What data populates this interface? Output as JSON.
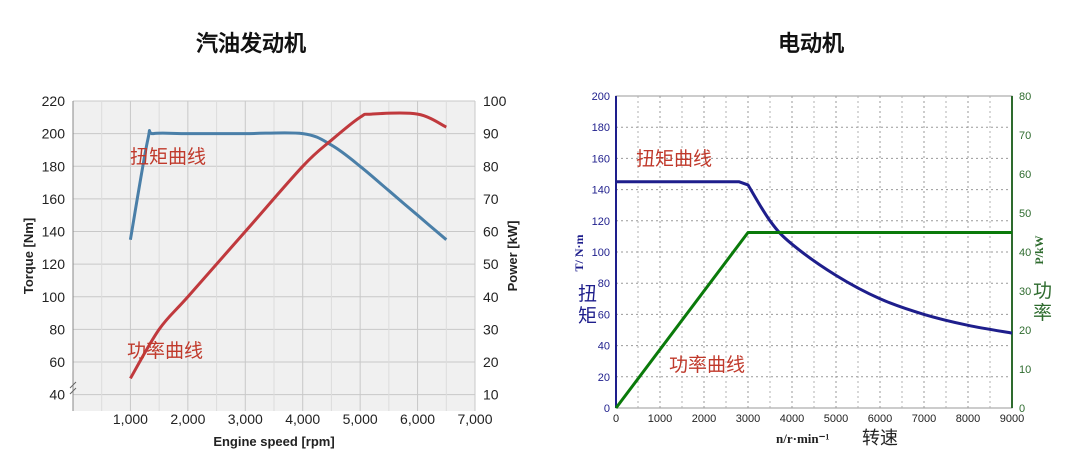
{
  "titles": {
    "left": "汽油发动机",
    "right": "电动机"
  },
  "colors": {
    "torque_engine": "#4a7fa8",
    "power_engine": "#c0393d",
    "torque_motor": "#1e1e8c",
    "power_motor": "#0a7a0a",
    "annotation_red": "#c0392b",
    "motor_right_axis": "#2e6b2e"
  },
  "chart_data": [
    {
      "type": "line",
      "title": "汽油发动机",
      "xlabel": "Engine speed [rpm]",
      "ylabel_left": "Torque [Nm]",
      "ylabel_right": "Power [kW]",
      "xlim": [
        0,
        7000
      ],
      "ylim_left": [
        30,
        220
      ],
      "ylim_right": [
        5,
        100
      ],
      "x_ticks": [
        "1,000",
        "2,000",
        "3,000",
        "4,000",
        "5,000",
        "6,000",
        "7,000"
      ],
      "y_ticks_left": [
        "40",
        "60",
        "80",
        "100",
        "120",
        "140",
        "160",
        "180",
        "200",
        "220"
      ],
      "y_ticks_right": [
        "10",
        "20",
        "30",
        "40",
        "50",
        "60",
        "70",
        "80",
        "90",
        "100"
      ],
      "grid": true,
      "series": [
        {
          "name": "扭矩曲线",
          "axis": "left",
          "x": [
            1000,
            1300,
            1400,
            2000,
            3000,
            4000,
            4500,
            5000,
            5500,
            6000,
            6500
          ],
          "y": [
            135,
            196,
            200,
            200,
            200,
            200,
            193,
            180,
            165,
            150,
            135
          ]
        },
        {
          "name": "功率曲线",
          "axis": "right",
          "x": [
            1000,
            1500,
            2000,
            3000,
            4000,
            4500,
            5000,
            5200,
            6000,
            6500
          ],
          "y": [
            15,
            30,
            40,
            60,
            80,
            88,
            95,
            96,
            96,
            92
          ]
        }
      ]
    },
    {
      "type": "line",
      "title": "电动机",
      "xlabel": "n/r·min⁻¹",
      "xlabel_cn": "转速",
      "ylabel_left": "T/ N·m",
      "ylabel_left_cn": "扭矩",
      "ylabel_right": "P/kW",
      "ylabel_right_cn": "功率",
      "xlim": [
        0,
        9000
      ],
      "ylim_left": [
        0,
        200
      ],
      "ylim_right": [
        0,
        80
      ],
      "x_ticks": [
        "0",
        "1000",
        "2000",
        "3000",
        "4000",
        "5000",
        "6000",
        "7000",
        "8000",
        "9000"
      ],
      "y_ticks_left": [
        "0",
        "20",
        "40",
        "60",
        "80",
        "100",
        "120",
        "140",
        "160",
        "180",
        "200"
      ],
      "y_ticks_right": [
        "0",
        "10",
        "20",
        "30",
        "40",
        "50",
        "60",
        "70",
        "80"
      ],
      "grid": true,
      "series": [
        {
          "name": "扭矩曲线",
          "axis": "left",
          "x": [
            0,
            2800,
            3000,
            3500,
            4000,
            5000,
            6000,
            7000,
            8000,
            9000
          ],
          "y": [
            145,
            145,
            143,
            120,
            105,
            85,
            70,
            60,
            53,
            48
          ]
        },
        {
          "name": "功率曲线",
          "axis": "right",
          "x": [
            0,
            3000,
            9000
          ],
          "y": [
            0,
            45,
            45
          ]
        }
      ]
    }
  ]
}
